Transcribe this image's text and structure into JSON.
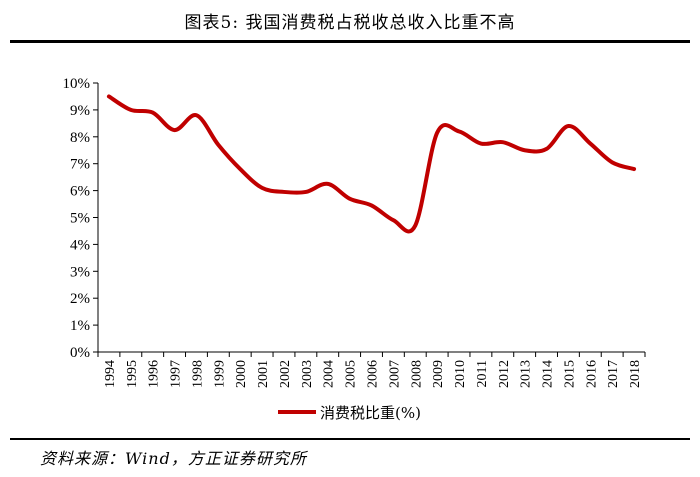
{
  "header": {
    "title": "图表5:   我国消费税占税收总收入比重不高"
  },
  "footer": {
    "source": "资料来源：Wind，方正证券研究所"
  },
  "chart_data": {
    "type": "line",
    "title": "我国消费税占税收总收入比重不高",
    "xlabel": "",
    "ylabel": "",
    "ylim": [
      0,
      10
    ],
    "yticks": [
      "0%",
      "1%",
      "2%",
      "3%",
      "4%",
      "5%",
      "6%",
      "7%",
      "8%",
      "9%",
      "10%"
    ],
    "categories": [
      "1994",
      "1995",
      "1996",
      "1997",
      "1998",
      "1999",
      "2000",
      "2001",
      "2002",
      "2003",
      "2004",
      "2005",
      "2006",
      "2007",
      "2008",
      "2009",
      "2010",
      "2011",
      "2012",
      "2013",
      "2014",
      "2015",
      "2016",
      "2017",
      "2018"
    ],
    "series": [
      {
        "name": "消费税比重(%)",
        "color": "#c00000",
        "values": [
          9.5,
          9.0,
          8.9,
          8.25,
          8.8,
          7.7,
          6.8,
          6.1,
          5.95,
          5.95,
          6.25,
          5.7,
          5.45,
          4.9,
          4.7,
          8.15,
          8.2,
          7.75,
          7.8,
          7.5,
          7.55,
          8.4,
          7.75,
          7.05,
          6.8
        ]
      }
    ],
    "legend": "bottom-center"
  }
}
